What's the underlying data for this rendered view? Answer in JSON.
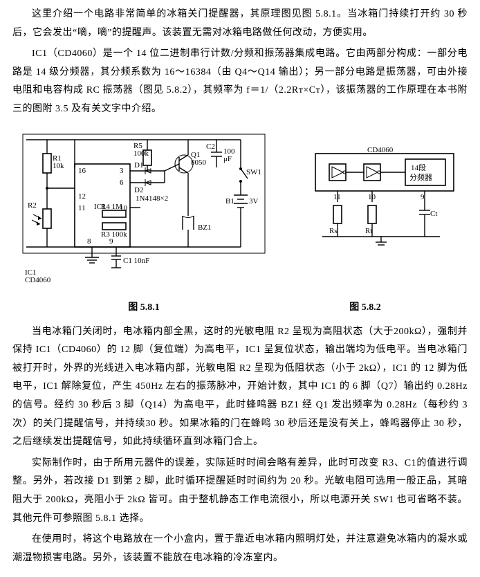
{
  "p1": "这里介绍一个电路非常简单的冰箱关门提醒器，其原理图见图 5.8.1。当冰箱门持续打开约 30 秒后，它会发出“嘀，嘀”的提醒声。该装置无需对冰箱电路做任何改动，方便实用。",
  "p2": "IC1（CD4060）是一个 14 位二进制串行计数/分频和振荡器集成电路。它由两部分构成：一部分电路是 14 级分频器，其分频系数为 16～16384（由 Q4～Q14 输出）；另一部分电路是振荡器，可由外接电阻和电容构成 RC 振荡器（图见 5.8.2），其频率为 f＝1/（2.2Rᴛ×Cᴛ），该振荡器的工作原理在本书附三的图附 3.5 及有关文字中介绍。",
  "cap1": "图 5.8.1",
  "cap2": "图 5.8.2",
  "p3": "当电冰箱门关闭时，电冰箱内部全黑，这时的光敏电阻 R2 呈现为高阻状态（大于200kΩ），强制并保持 IC1（CD4060）的 12 脚（复位端）为高电平，IC1 呈复位状态，输出端均为低电平。当电冰箱门被打开时，外界的光线进入电冰箱内部，光敏电阻 R2 呈现为低阻状态（小于 2kΩ），IC1 的 12 脚为低电平，IC1 解除复位，产生 450Hz 左右的振荡脉冲，开始计数，其中 IC1 的 6 脚（Q7）输出约 0.28Hz 的信号。经约 30 秒后 3 脚（Q14）为高电平，此时蜂鸣器 BZ1 经 Q1 发出频率为 0.28Hz（每秒约 3 次）的关门提醒信号，并持续30 秒。如果冰箱的门在蜂鸣 30 秒后还是没有关上，蜂鸣器停止 30 秒，之后继续发出提醒信号，如此持续循环直到冰箱门合上。",
  "p4": "实际制作时，由于所用元器件的误差，实际延时时间会略有差异，此时可改变 R3、C1的值进行调整。另外，若改接 D1 到第 2 脚，此时循环提醒延时时间约为 20 秒。光敏电阻可选用一般正品，其暗阻大于 200kΩ，亮阻小于 2kΩ 皆可。由于整机静态工作电流很小，所以电源开关 SW1 也可省略不装。其他元件可参照图 5.8.1 选择。",
  "p5": "在使用时，将这个电路放在一个小盒内，置于靠近电冰箱内照明灯处，并注意避免冰箱内的凝水或潮湿物损害电路。另外，该装置不能放在电冰箱的冷冻室内。",
  "fig1": {
    "type": "circuit-schematic",
    "labels": {
      "R1": "R1\n10k",
      "R5": "R5\n100k",
      "Q1": "Q1\n8050",
      "C2": "C2",
      "C2v": "100\nμF",
      "SW1": "SW1",
      "R2": "R2",
      "IC1": "IC1",
      "D1": "D1",
      "D2": "D2",
      "D12": "1N4148×2",
      "R4": "R4  1M",
      "R3": "R3  100k",
      "B1": "B1",
      "V3": "3V",
      "BZ1": "BZ1",
      "C1": "C1  10nF",
      "ICpart": "IC1\nCD4060",
      "pin16": "16",
      "pin3": "3",
      "pin6": "6",
      "pin12": "12",
      "pin11": "11",
      "pin10": "10",
      "pin8": "8",
      "pin9": "9"
    },
    "colors": {
      "stroke": "#000000",
      "bg": "#ffffff"
    }
  },
  "fig2": {
    "type": "block-diagram",
    "labels": {
      "chip": "CD4060",
      "divider": "14段\n分频器",
      "p11": "11",
      "p10": "10",
      "p9": "9",
      "Rs": "Rs",
      "Rt": "Rt",
      "Ct": "Ct"
    },
    "colors": {
      "stroke": "#000000",
      "bg": "#ffffff"
    }
  }
}
